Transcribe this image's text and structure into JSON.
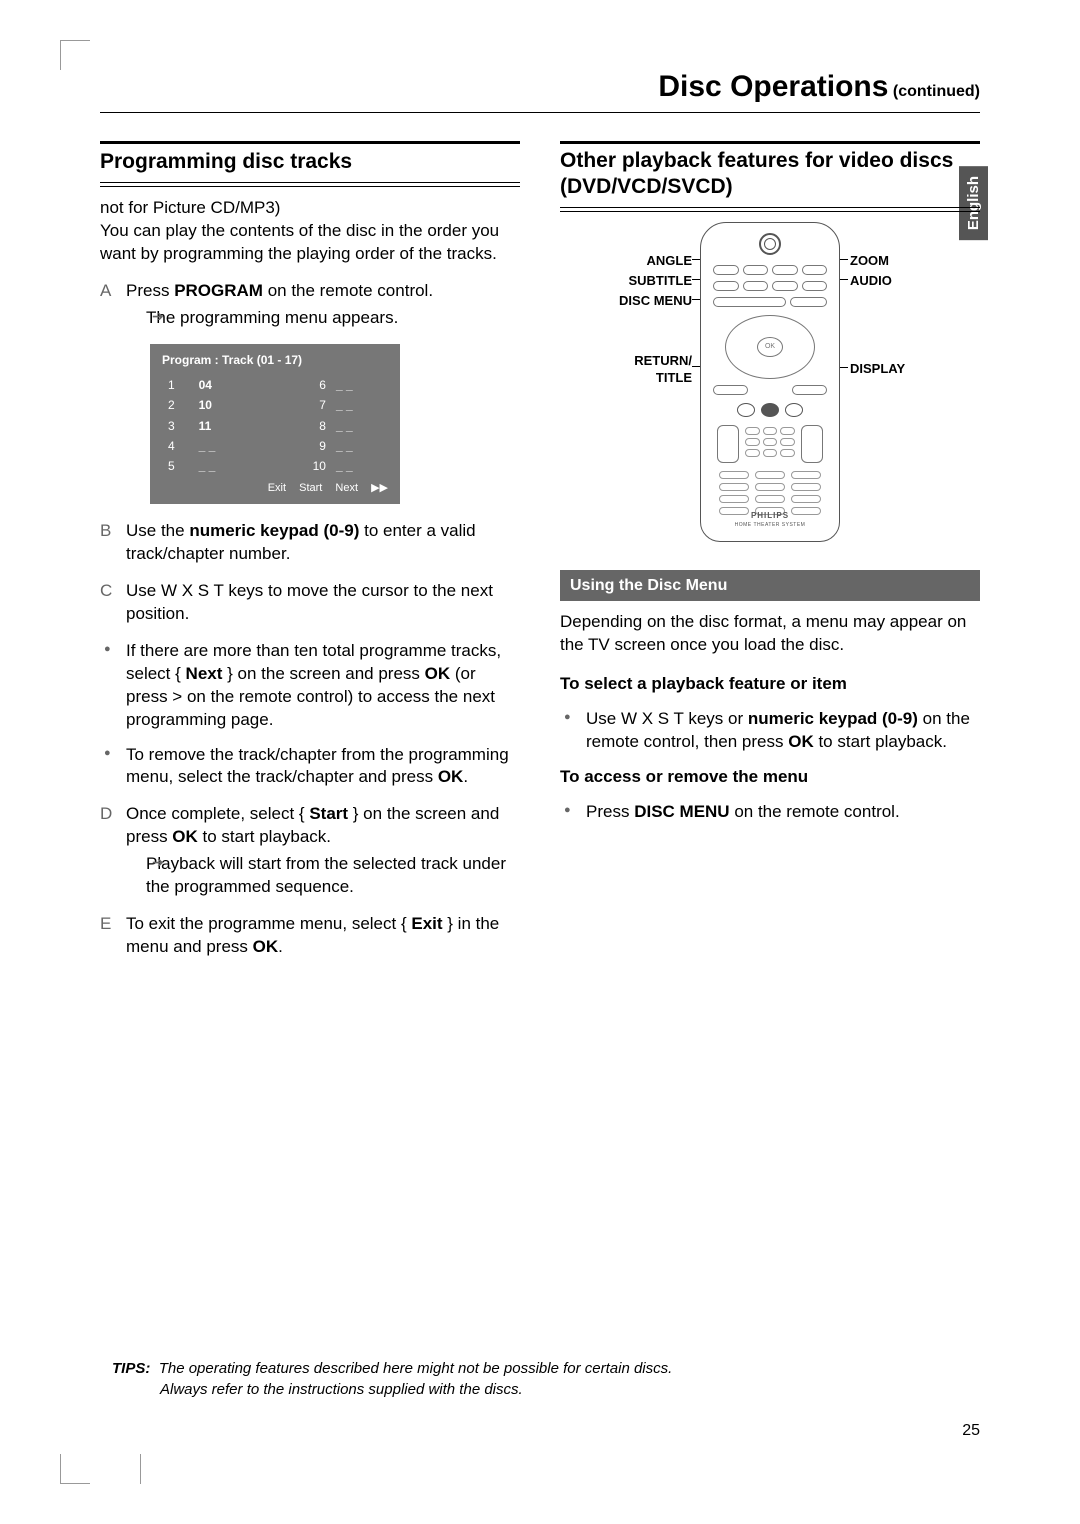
{
  "page": {
    "title_main": "Disc Operations",
    "title_cont": " (continued)",
    "lang_tab": "English",
    "page_number": "25"
  },
  "left": {
    "heading": "Programming disc tracks",
    "intro_note": "not for Picture CD/MP3)",
    "intro_body": "You can play the contents of the disc in the order you want by programming the playing order of the tracks.",
    "stepA": {
      "marker": "A",
      "pre": "Press ",
      "bold": "PROGRAM",
      "post": " on the remote control."
    },
    "stepA_result": "The programming menu appears.",
    "program_box": {
      "header": "Program : Track (01 - 17)",
      "rows": [
        {
          "i": "1",
          "v": "04",
          "i2": "6",
          "v2": "_ _"
        },
        {
          "i": "2",
          "v": "10",
          "i2": "7",
          "v2": "_ _"
        },
        {
          "i": "3",
          "v": "11",
          "i2": "8",
          "v2": "_ _"
        },
        {
          "i": "4",
          "v": "_ _",
          "i2": "9",
          "v2": "_ _"
        },
        {
          "i": "5",
          "v": "_ _",
          "i2": "10",
          "v2": "_ _"
        }
      ],
      "footer": "Exit  Start  Next  ▶▶"
    },
    "stepB": {
      "marker": "B",
      "pre": "Use the ",
      "bold": "numeric keypad (0-9)",
      "post": " to enter a valid track/chapter number."
    },
    "stepC": {
      "marker": "C",
      "text": "Use  W X S T keys to move the cursor to the next position."
    },
    "bullet1": {
      "pre": "If there are more than ten total programme tracks, select { ",
      "b1": "Next",
      "mid": " } on the screen and press ",
      "b2": "OK",
      "post": " (or press > on the remote control) to access the next programming page."
    },
    "bullet2": {
      "pre": "To remove the track/chapter from the programming menu, select the track/chapter and press ",
      "b1": "OK",
      "post": "."
    },
    "stepD": {
      "marker": "D",
      "pre": "Once complete, select { ",
      "b1": "Start",
      "mid": " } on the screen and press ",
      "b2": "OK",
      "post": " to start playback."
    },
    "stepD_result": "Playback will start from the selected track under the programmed sequence.",
    "stepE": {
      "marker": "E",
      "pre": "To exit the programme menu, select { ",
      "b1": "Exit",
      "mid": " } in the menu and press ",
      "b2": "OK",
      "post": "."
    }
  },
  "right": {
    "heading": "Other playback features for video discs (DVD/VCD/SVCD)",
    "callouts": {
      "angle": "ANGLE",
      "subtitle": "SUBTITLE",
      "discmenu": "DISC MENU",
      "return": "RETURN/\nTITLE",
      "zoom": "ZOOM",
      "audio": "AUDIO",
      "display": "DISPLAY"
    },
    "subhead": "Using the Disc Menu",
    "para1": "Depending on the disc format, a menu may appear on the TV screen once you load the disc.",
    "bold1": "To select a playback feature or item",
    "bullet1": {
      "pre": "Use  W X S T keys or ",
      "b1": "numeric keypad (0-9)",
      "mid": " on the remote control, then press ",
      "b2": "OK",
      "post": " to start playback."
    },
    "bold2": "To access or remove the menu",
    "bullet2": {
      "pre": "Press ",
      "b1": "DISC MENU",
      "post": " on the remote control."
    }
  },
  "tips": {
    "label": "TIPS:",
    "line1": "The operating features described here might not be possible for certain discs.",
    "line2": "Always refer to the instructions supplied with the discs."
  },
  "colors": {
    "bar": "#666666",
    "progbox": "#777777",
    "marker": "#666666"
  }
}
